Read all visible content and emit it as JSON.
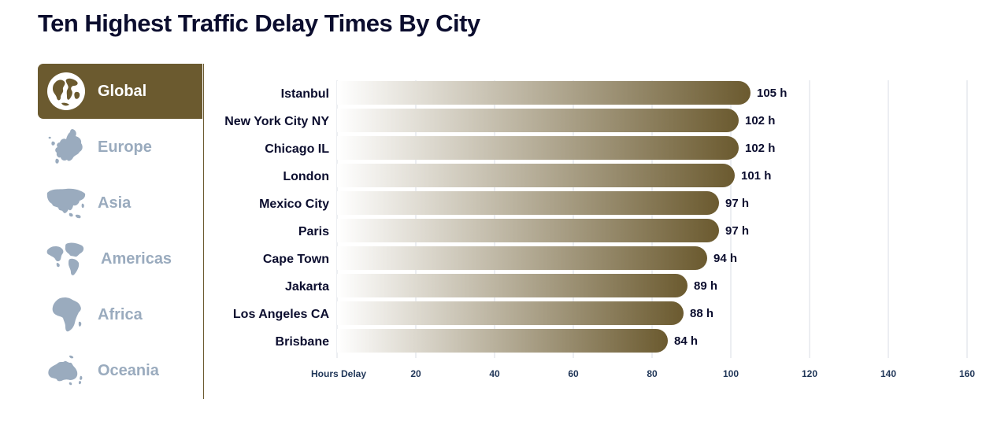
{
  "page": {
    "title": "Ten Highest Traffic Delay Times By City"
  },
  "sidebar": {
    "items": [
      {
        "label": "Global",
        "icon": "globe-icon",
        "active": true
      },
      {
        "label": "Europe",
        "icon": "europe-map-icon",
        "active": false
      },
      {
        "label": "Asia",
        "icon": "asia-map-icon",
        "active": false
      },
      {
        "label": "Americas",
        "icon": "americas-map-icon",
        "active": false
      },
      {
        "label": "Africa",
        "icon": "africa-map-icon",
        "active": false
      },
      {
        "label": "Oceania",
        "icon": "oceania-map-icon",
        "active": false
      }
    ]
  },
  "colors": {
    "active_bg": "#6b5a2f",
    "bar_end": "#6b5a2f",
    "bar_start": "#ffffff",
    "inactive_text": "#9aabbe",
    "title": "#0b0d2e"
  },
  "chart_data": {
    "type": "bar",
    "orientation": "horizontal",
    "categories": [
      "Istanbul",
      "New York City NY",
      "Chicago IL",
      "London",
      "Mexico City",
      "Paris",
      "Cape Town",
      "Jakarta",
      "Los Angeles CA",
      "Brisbane"
    ],
    "values": [
      105,
      102,
      102,
      101,
      97,
      97,
      94,
      89,
      88,
      84
    ],
    "value_suffix": " h",
    "xlabel": "Hours Delay",
    "xticks": [
      20,
      40,
      60,
      80,
      100,
      120,
      140,
      160
    ],
    "xlim": [
      0,
      160
    ],
    "grid": true
  }
}
